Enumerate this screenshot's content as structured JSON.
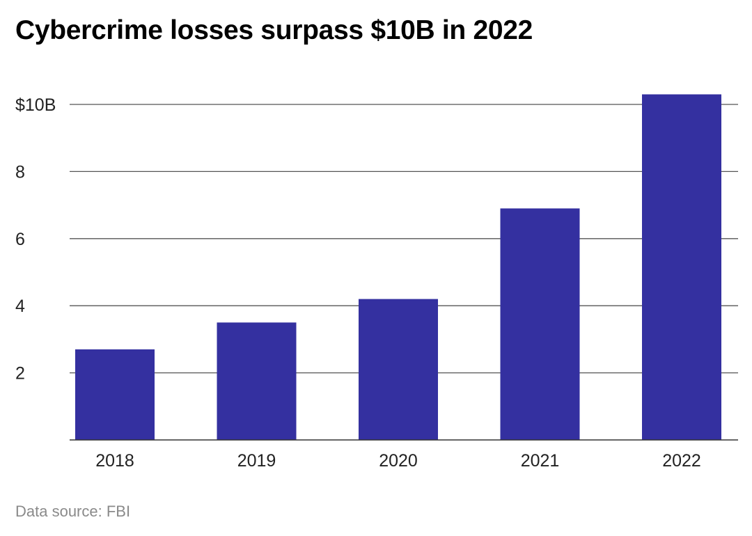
{
  "chart_data": {
    "type": "bar",
    "title": "Cybercrime losses surpass $10B in 2022",
    "categories": [
      "2018",
      "2019",
      "2020",
      "2021",
      "2022"
    ],
    "values": [
      2.7,
      3.5,
      4.2,
      6.9,
      10.3
    ],
    "unit": "billion USD",
    "xlabel": "",
    "ylabel": "",
    "ylim": [
      0,
      10
    ],
    "yticks": [
      2,
      4,
      6,
      8,
      10
    ],
    "ytick_labels": [
      "2",
      "4",
      "6",
      "8",
      "$10B"
    ],
    "grid": true,
    "bar_color": "#3430a0",
    "source": "Data source: FBI"
  }
}
